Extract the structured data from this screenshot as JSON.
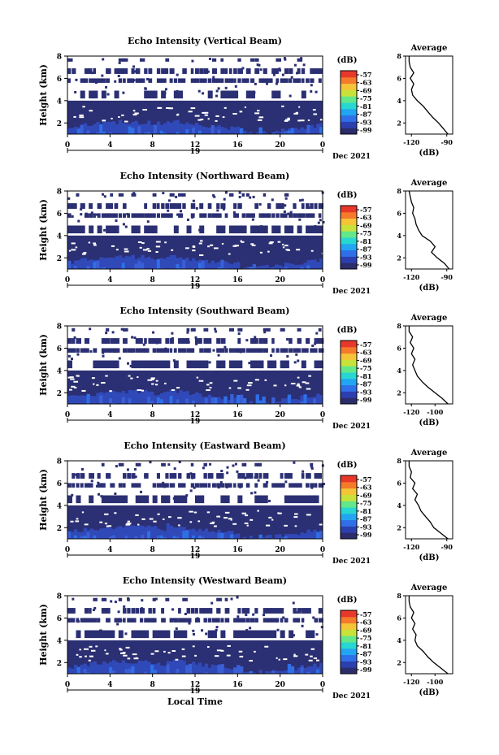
{
  "common": {
    "x_ticks": [
      "0",
      "4",
      "8",
      "12",
      "16",
      "20",
      "0"
    ],
    "day_label": "19",
    "month_year": "Dec 2021",
    "xlabel_bottom": "Local Time",
    "ylabel": "Height (km)",
    "y_ticks": [
      "2",
      "4",
      "6",
      "8"
    ],
    "colorbar_unit": "(dB)",
    "colorbar_ticks": [
      "-57",
      "-63",
      "-69",
      "-75",
      "-81",
      "-87",
      "-93",
      "-99"
    ],
    "colorbar_colors": [
      "#2a2c6c",
      "#2c3fae",
      "#2f6fe8",
      "#22a5f2",
      "#27d7d2",
      "#62e88a",
      "#c8e23a",
      "#f5c437",
      "#f57a2a",
      "#e8382a"
    ],
    "avg_title": "Average",
    "avg_xlabel": "(dB)"
  },
  "chart_data": [
    {
      "type": "heatmap",
      "title": "Echo Intensity (Vertical Beam)",
      "xlim": [
        0,
        24
      ],
      "ylim": [
        1,
        8
      ],
      "xlabel": "Local Time",
      "ylabel": "Height (km)",
      "colorbar": {
        "unit": "(dB)",
        "range": [
          -99,
          -57
        ]
      },
      "average_profile": {
        "title": "Average",
        "xlabel": "(dB)",
        "x_ticks": [
          "-120",
          "-90"
        ],
        "xlim": [
          -125,
          -85
        ],
        "height_km": [
          1.0,
          1.5,
          2.0,
          2.5,
          3.0,
          3.5,
          4.0,
          4.5,
          5.0,
          5.5,
          6.0,
          6.5,
          7.0,
          7.5,
          8.0
        ],
        "db": [
          -89,
          -93,
          -97,
          -102,
          -106,
          -110,
          -115,
          -119,
          -120,
          -118,
          -121,
          -118,
          -121,
          -122,
          -122
        ]
      }
    },
    {
      "type": "heatmap",
      "title": "Echo Intensity (Northward Beam)",
      "xlim": [
        0,
        24
      ],
      "ylim": [
        1,
        8
      ],
      "xlabel": "Local Time",
      "ylabel": "Height (km)",
      "colorbar": {
        "unit": "(dB)",
        "range": [
          -99,
          -57
        ]
      },
      "average_profile": {
        "title": "Average",
        "xlabel": "(dB)",
        "x_ticks": [
          "-120",
          "-90"
        ],
        "xlim": [
          -125,
          -85
        ],
        "height_km": [
          1.0,
          1.5,
          2.0,
          2.5,
          3.0,
          3.5,
          4.0,
          4.5,
          5.0,
          5.5,
          6.0,
          6.5,
          7.0,
          7.5,
          8.0
        ],
        "db": [
          -88,
          -92,
          -98,
          -103,
          -100,
          -104,
          -111,
          -114,
          -116,
          -117,
          -119,
          -118,
          -120,
          -121,
          -122
        ]
      }
    },
    {
      "type": "heatmap",
      "title": "Echo Intensity (Southward Beam)",
      "xlim": [
        0,
        24
      ],
      "ylim": [
        1,
        8
      ],
      "xlabel": "Local Time",
      "ylabel": "Height (km)",
      "colorbar": {
        "unit": "(dB)",
        "range": [
          -99,
          -57
        ]
      },
      "average_profile": {
        "title": "Average",
        "xlabel": "(dB)",
        "x_ticks": [
          "-120",
          "-100"
        ],
        "xlim": [
          -125,
          -85
        ],
        "height_km": [
          1.0,
          1.5,
          2.0,
          2.5,
          3.0,
          3.5,
          4.0,
          4.5,
          5.0,
          5.5,
          6.0,
          6.5,
          7.0,
          7.5,
          8.0
        ],
        "db": [
          -89,
          -94,
          -100,
          -106,
          -111,
          -115,
          -117,
          -119,
          -117,
          -120,
          -118,
          -121,
          -119,
          -122,
          -122
        ]
      }
    },
    {
      "type": "heatmap",
      "title": "Echo Intensity (Eastward Beam)",
      "xlim": [
        0,
        24
      ],
      "ylim": [
        1,
        8
      ],
      "xlabel": "Local Time",
      "ylabel": "Height (km)",
      "colorbar": {
        "unit": "(dB)",
        "range": [
          -99,
          -57
        ]
      },
      "average_profile": {
        "title": "Average",
        "xlabel": "(dB)",
        "x_ticks": [
          "-120",
          "-90"
        ],
        "xlim": [
          -125,
          -85
        ],
        "height_km": [
          1.0,
          1.5,
          2.0,
          2.5,
          3.0,
          3.5,
          4.0,
          4.5,
          5.0,
          5.5,
          6.0,
          6.5,
          7.0,
          7.5,
          8.0
        ],
        "db": [
          -89,
          -95,
          -101,
          -104,
          -108,
          -112,
          -114,
          -117,
          -115,
          -119,
          -117,
          -121,
          -120,
          -122,
          -122
        ]
      }
    },
    {
      "type": "heatmap",
      "title": "Echo Intensity (Westward Beam)",
      "xlim": [
        0,
        24
      ],
      "ylim": [
        1,
        8
      ],
      "xlabel": "Local Time",
      "ylabel": "Height (km)",
      "colorbar": {
        "unit": "(dB)",
        "range": [
          -99,
          -57
        ]
      },
      "average_profile": {
        "title": "Average",
        "xlabel": "(dB)",
        "x_ticks": [
          "-120",
          "-100"
        ],
        "xlim": [
          -125,
          -85
        ],
        "height_km": [
          1.0,
          1.5,
          2.0,
          2.5,
          3.0,
          3.5,
          4.0,
          4.5,
          5.0,
          5.5,
          6.0,
          6.5,
          7.0,
          7.5,
          8.0
        ],
        "db": [
          -89,
          -95,
          -101,
          -106,
          -110,
          -115,
          -117,
          -116,
          -119,
          -117,
          -120,
          -118,
          -121,
          -122,
          -122
        ]
      }
    }
  ]
}
